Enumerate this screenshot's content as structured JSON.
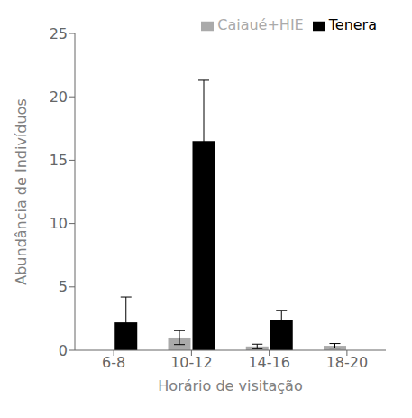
{
  "chart_data": {
    "type": "bar",
    "xlabel": "Horário de visitação",
    "ylabel": "Abundância de Indivíduos",
    "categories": [
      "6-8",
      "10-12",
      "14-16",
      "18-20"
    ],
    "series": [
      {
        "name": "Caiaué+HIE",
        "color": "#aaaaaa",
        "values": [
          0.0,
          1.0,
          0.3,
          0.35
        ],
        "errors": [
          0.0,
          0.55,
          0.18,
          0.18
        ]
      },
      {
        "name": "Tenera",
        "color": "#000000",
        "values": [
          2.2,
          16.5,
          2.4,
          0.0
        ],
        "errors": [
          2.0,
          4.8,
          0.75,
          0.0
        ]
      }
    ],
    "ylim": [
      0,
      25
    ],
    "yticks": [
      0,
      5,
      10,
      15,
      20,
      25
    ],
    "legend": "upper right",
    "grid": false
  }
}
